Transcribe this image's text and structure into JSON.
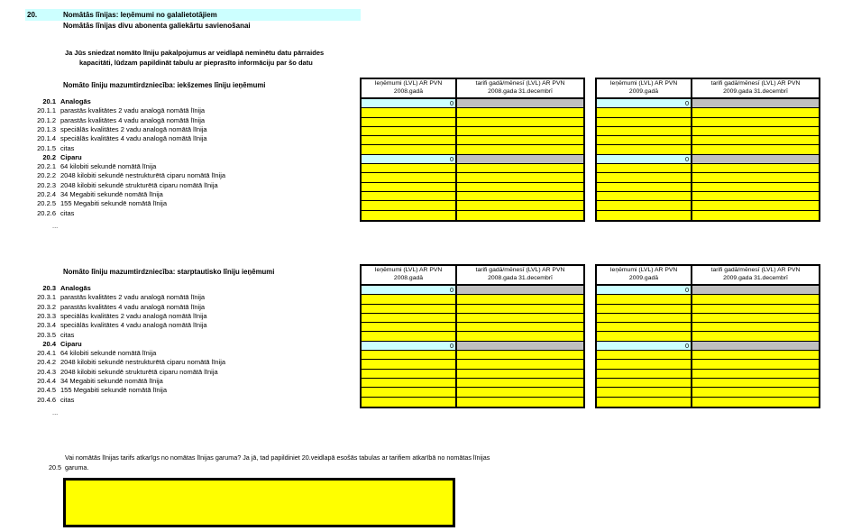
{
  "page": {
    "section_number": "20.",
    "title": "Nomātās līnijas: Ieņēmumi no galalietotājiem",
    "subtitle": "Nomātās līnijas divu abonenta galiekārtu savienošanai",
    "note_line1": "Ja Jūs sniedzat nomāto līniju pakalpojumus ar veidlapā neminētu datu pārraides",
    "note_line2": "kapacitāti, lūdzam papildināt tabulu ar pieprasīto informāciju par šo datu"
  },
  "colors": {
    "highlight_cyan": "#CCFFFF",
    "input_yellow": "#FFFF00",
    "locked_gray": "#C0C0C0",
    "border_black": "#000000"
  },
  "groups": [
    {
      "section_title": "Nomāto līniju mazumtirdzniecība: iekšzemes līniju ieņēmumi",
      "ellipsis": "...",
      "tables": [
        {
          "col1_header": [
            "Ieņēmumi (LVL) AR PVN",
            "2008.gadā"
          ],
          "col2_header": [
            "tarifi gadā/mēnesī (LVL) AR PVN",
            "2008.gada 31.decembrī"
          ]
        },
        {
          "col1_header": [
            "Ieņēmumi (LVL) AR PVN",
            "2009.gadā"
          ],
          "col2_header": [
            "tarifi gadā/mēnesī (LVL) AR PVN",
            "2009.gada 31.decembrī"
          ]
        }
      ],
      "rows": [
        {
          "num": "20.1",
          "label": "Analogās",
          "type": "section",
          "value": "0"
        },
        {
          "num": "20.1.1",
          "label": "parastās kvalitātes 2 vadu analogā nomātā līnija",
          "type": "input"
        },
        {
          "num": "20.1.2",
          "label": "parastās kvalitātes 4 vadu analogā nomātā līnija",
          "type": "input"
        },
        {
          "num": "20.1.3",
          "label": "speciālās kvalitātes 2 vadu analogā nomātā līnija",
          "type": "input"
        },
        {
          "num": "20.1.4",
          "label": "speciālās kvalitātes 4 vadu analogā nomātā līnija",
          "type": "input"
        },
        {
          "num": "20.1.5",
          "label": "citas",
          "type": "input"
        },
        {
          "num": "20.2",
          "label": "Ciparu",
          "type": "section",
          "value": "0"
        },
        {
          "num": "20.2.1",
          "label": "64 kilobiti sekundē nomātā līnija",
          "type": "input"
        },
        {
          "num": "20.2.2",
          "label": "2048  kilobiti sekundē nestrukturētā ciparu nomātā līnija",
          "type": "input"
        },
        {
          "num": "20.2.3",
          "label": "2048  kilobiti sekundē strukturētā ciparu nomātā līnija",
          "type": "input"
        },
        {
          "num": "20.2.4",
          "label": "34 Megabiti sekundē nomātā līnija",
          "type": "input"
        },
        {
          "num": "20.2.5",
          "label": "155 Megabiti sekundē nomātā  līnija",
          "type": "input"
        },
        {
          "num": "20.2.6",
          "label": "citas",
          "type": "input"
        }
      ]
    },
    {
      "section_title": "Nomāto līniju mazumtirdzniecība: starptautisko līniju ieņēmumi",
      "ellipsis": "...",
      "tables": [
        {
          "col1_header": [
            "Ieņēmumi (LVL) AR PVN",
            "2008.gadā"
          ],
          "col2_header": [
            "tarifi gadā/mēnesī (LVL) AR PVN",
            "2008.gada 31.decembrī"
          ]
        },
        {
          "col1_header": [
            "Ieņēmumi (LVL) AR PVN",
            "2009.gadā"
          ],
          "col2_header": [
            "tarifi gadā/mēnesī (LVL) AR PVN",
            "2009.gada 31.decembrī"
          ]
        }
      ],
      "rows": [
        {
          "num": "20.3",
          "label": "Analogās",
          "type": "section",
          "value": "0"
        },
        {
          "num": "20.3.1",
          "label": "parastās kvalitātes 2 vadu analogā nomātā līnija",
          "type": "input"
        },
        {
          "num": "20.3.2",
          "label": "parastās kvalitātes 4 vadu analogā nomātā līnija",
          "type": "input"
        },
        {
          "num": "20.3.3",
          "label": "speciālās kvalitātes 2 vadu analogā nomātā līnija",
          "type": "input"
        },
        {
          "num": "20.3.4",
          "label": "speciālās kvalitātes 4 vadu analogā nomātā līnija",
          "type": "input"
        },
        {
          "num": "20.3.5",
          "label": "citas",
          "type": "input"
        },
        {
          "num": "20.4",
          "label": "Ciparu",
          "type": "section",
          "value": "0"
        },
        {
          "num": "20.4.1",
          "label": "64 kilobiti sekundē nomātā līnija",
          "type": "input"
        },
        {
          "num": "20.4.2",
          "label": "2048  kilobiti sekundē nestrukturētā ciparu nomātā līnija",
          "type": "input"
        },
        {
          "num": "20.4.3",
          "label": "2048  kilobiti sekundē strukturētā ciparu nomātā līnija",
          "type": "input"
        },
        {
          "num": "20.4.4",
          "label": "34 Megabiti sekundē nomātā līnija",
          "type": "input"
        },
        {
          "num": "20.4.5",
          "label": "155 Megabiti sekundē nomātā  līnija",
          "type": "input"
        },
        {
          "num": "20.4.6",
          "label": "citas",
          "type": "input"
        }
      ]
    }
  ],
  "question": {
    "number": "20.5",
    "line1": "Vai nomātās līnijas tarifs atkarīgs no nomātas līnijas garuma? Ja jā, tad papildiniet 20.veidlapā esošās tabulas ar tarifiem atkarībā no nomātas līnijas",
    "line2": "garuma."
  }
}
